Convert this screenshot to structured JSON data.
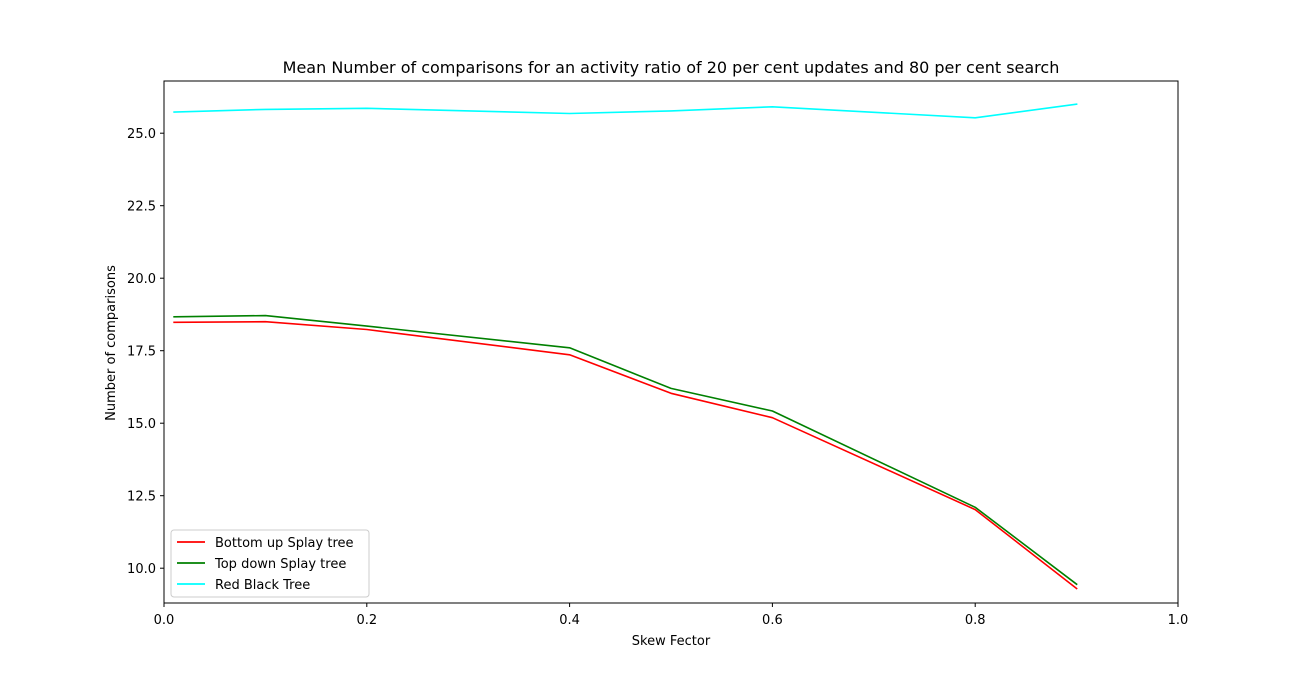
{
  "chart_data": {
    "type": "line",
    "title": "Mean Number of comparisons for an activity ratio of 20 per cent updates and 80 per cent search",
    "xlabel": "Skew Fector",
    "ylabel": "Number of comparisons",
    "xlim": [
      0.0,
      1.0
    ],
    "ylim": [
      8.8,
      26.8
    ],
    "xticks": [
      "0.0",
      "0.2",
      "0.4",
      "0.6",
      "0.8",
      "1.0"
    ],
    "yticks": [
      "10.0",
      "12.5",
      "15.0",
      "17.5",
      "20.0",
      "22.5",
      "25.0"
    ],
    "grid": false,
    "legend_position": "lower-left",
    "x": [
      0.01,
      0.1,
      0.2,
      0.4,
      0.5,
      0.6,
      0.8,
      0.9
    ],
    "series": [
      {
        "name": "Bottom up Splay tree",
        "color": "#ff0000",
        "values": [
          18.48,
          18.5,
          18.23,
          17.36,
          16.03,
          15.19,
          12.02,
          9.3
        ]
      },
      {
        "name": "Top down Splay tree",
        "color": "#008000",
        "values": [
          18.67,
          18.71,
          18.35,
          17.6,
          16.2,
          15.42,
          12.1,
          9.45
        ]
      },
      {
        "name": "Red Black Tree",
        "color": "#00ffff",
        "values": [
          25.73,
          25.82,
          25.86,
          25.68,
          25.77,
          25.91,
          25.53,
          26.0
        ]
      }
    ]
  }
}
